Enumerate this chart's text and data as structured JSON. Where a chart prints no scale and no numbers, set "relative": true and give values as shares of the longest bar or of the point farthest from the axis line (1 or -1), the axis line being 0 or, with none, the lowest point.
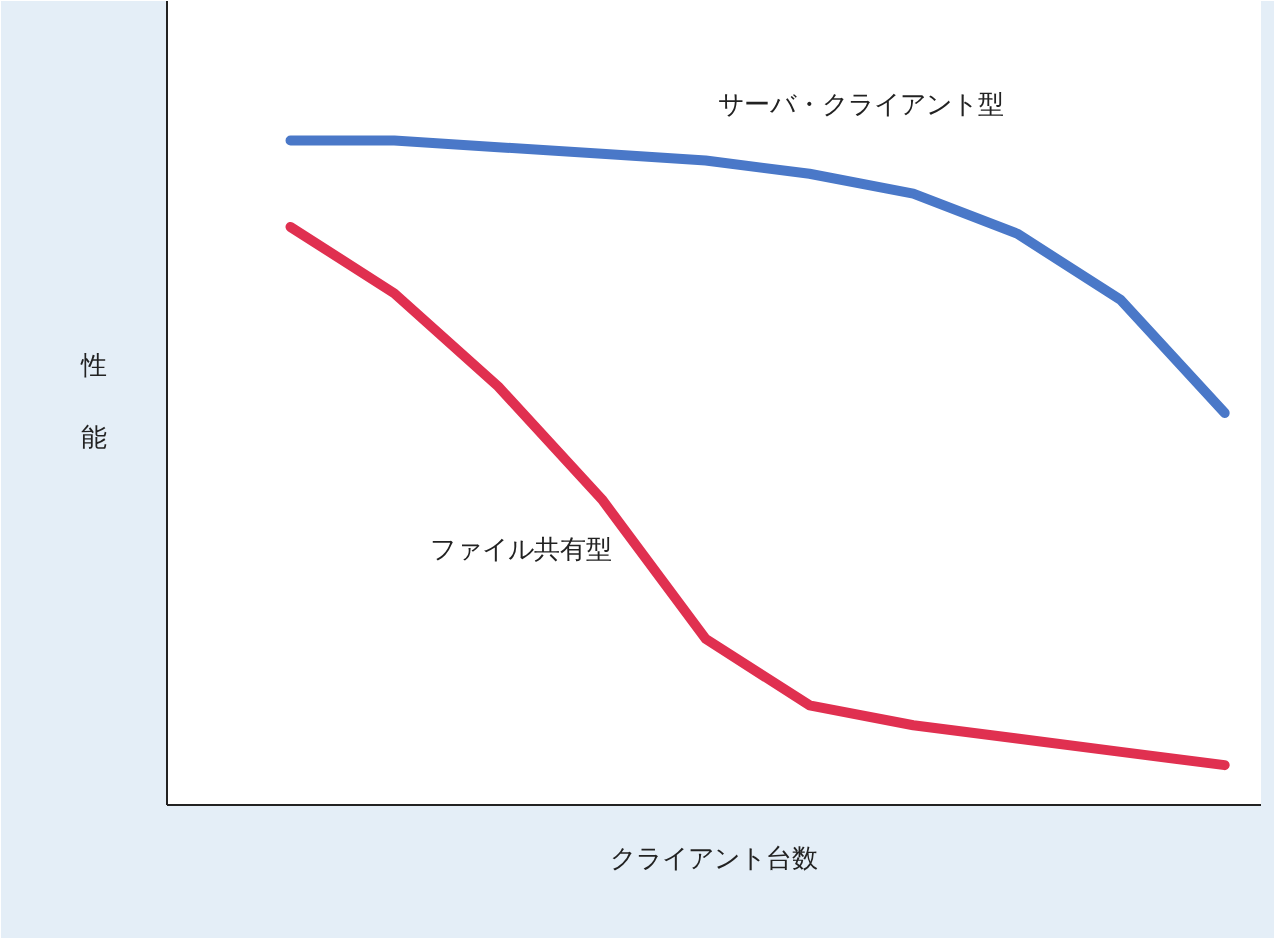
{
  "chart_data": {
    "type": "line",
    "relative": true,
    "xlabel": "クライアント台数",
    "ylabel": "性能",
    "categories": [
      null,
      null,
      null,
      null,
      null,
      null,
      null,
      null,
      null,
      null
    ],
    "series": [
      {
        "name": "サーバ・クライアント型",
        "color": "#4a78c8",
        "values": [
          1,
          1.0,
          0.99,
          0.98,
          0.97,
          0.95,
          0.92,
          0.86,
          0.76,
          0.59
        ]
      },
      {
        "name": "ファイル共有型",
        "color": "#e03050",
        "values": [
          0.87,
          0.77,
          0.63,
          0.46,
          0.25,
          0.15,
          0.12,
          0.1,
          0.08,
          0.06
        ]
      }
    ]
  }
}
